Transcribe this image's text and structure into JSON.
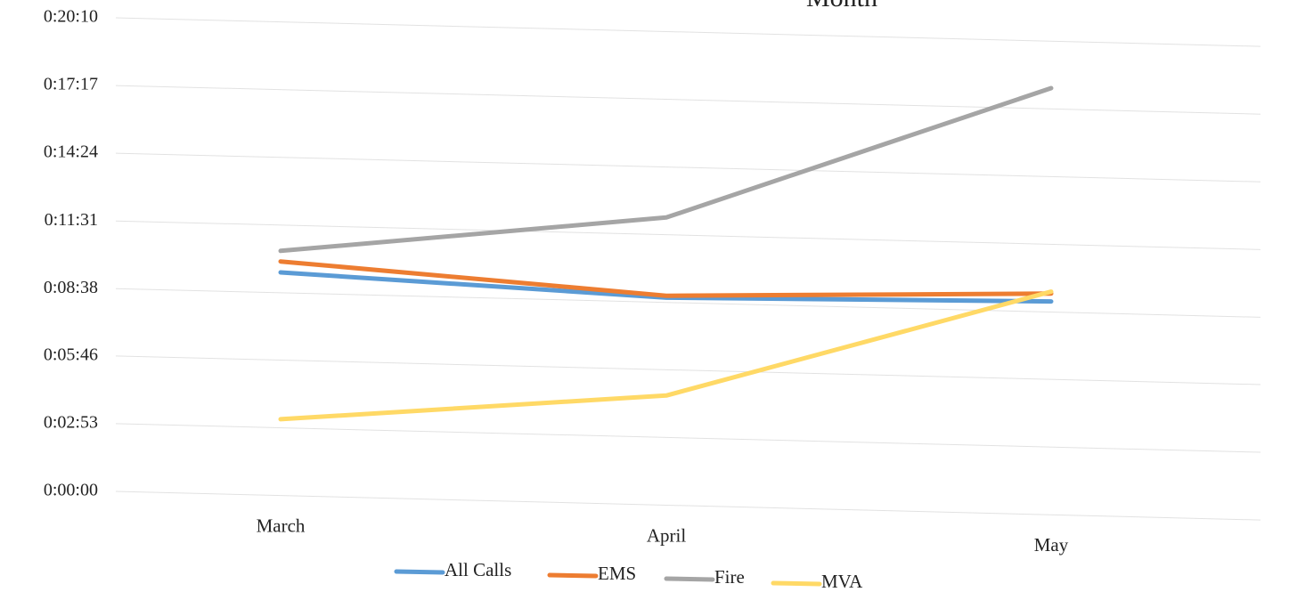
{
  "chart_data": {
    "type": "line",
    "title": "Month",
    "xlabel": "",
    "ylabel": "",
    "categories": [
      "March",
      "April",
      "May"
    ],
    "y_tick_labels": [
      "0:00:00",
      "0:02:53",
      "0:05:46",
      "0:08:38",
      "0:11:31",
      "0:14:24",
      "0:17:17",
      "0:20:10"
    ],
    "ylim": [
      "0:00:00",
      "0:20:10"
    ],
    "grid": true,
    "legend_position": "bottom",
    "series": [
      {
        "name": "All Calls",
        "color": "#5B9BD5",
        "values": [
          "0:09:30",
          "0:08:50",
          "0:09:05"
        ]
      },
      {
        "name": "EMS",
        "color": "#ED7D31",
        "values": [
          "0:09:58",
          "0:08:55",
          "0:09:25"
        ]
      },
      {
        "name": "Fire",
        "color": "#A5A5A5",
        "values": [
          "0:10:25",
          "0:12:15",
          "0:18:10"
        ]
      },
      {
        "name": "MVA",
        "color": "#FFD966",
        "values": [
          "0:03:15",
          "0:04:40",
          "0:09:30"
        ]
      }
    ]
  }
}
